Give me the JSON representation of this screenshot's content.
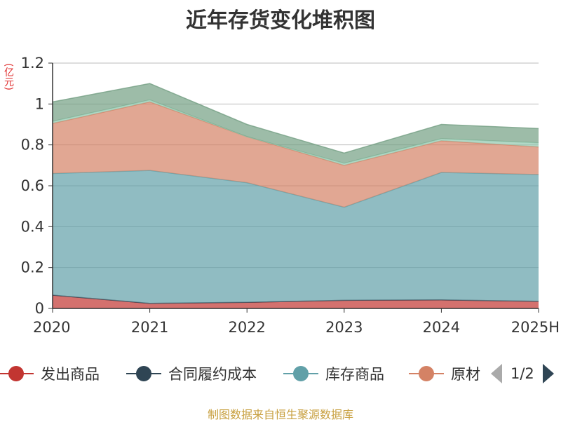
{
  "title": "近年存货变化堆积图",
  "unit": "(亿元)",
  "source": "制图数据来自恒生聚源数据库",
  "pager": "1/2",
  "chart_data": {
    "type": "area",
    "stacked": true,
    "x": [
      "2020",
      "2021",
      "2022",
      "2023",
      "2024",
      "2025H"
    ],
    "ylim": [
      0,
      1.2
    ],
    "yticks": [
      "0",
      "0.2",
      "0.4",
      "0.6",
      "0.8",
      "1",
      "1.2"
    ],
    "grid": true,
    "legend_position": "bottom",
    "series": [
      {
        "name": "发出商品",
        "color": "#c23531",
        "values": [
          0.065,
          0.025,
          0.03,
          0.04,
          0.042,
          0.035
        ]
      },
      {
        "name": "合同履约成本",
        "color": "#2f4554",
        "values": [
          0,
          0,
          0,
          0,
          0,
          0
        ]
      },
      {
        "name": "库存商品",
        "color": "#61a0a8",
        "values": [
          0.595,
          0.65,
          0.585,
          0.455,
          0.623,
          0.62
        ]
      },
      {
        "name": "原材料",
        "color": "#d48265",
        "values": [
          0.245,
          0.335,
          0.225,
          0.205,
          0.155,
          0.135
        ]
      },
      {
        "name": "",
        "color": "#91c7ae",
        "values": [
          0.01,
          0.01,
          0.0,
          0.01,
          0.01,
          0.02
        ]
      },
      {
        "name": "",
        "color": "#749f83",
        "values": [
          0.095,
          0.08,
          0.06,
          0.05,
          0.07,
          0.07
        ]
      }
    ]
  }
}
